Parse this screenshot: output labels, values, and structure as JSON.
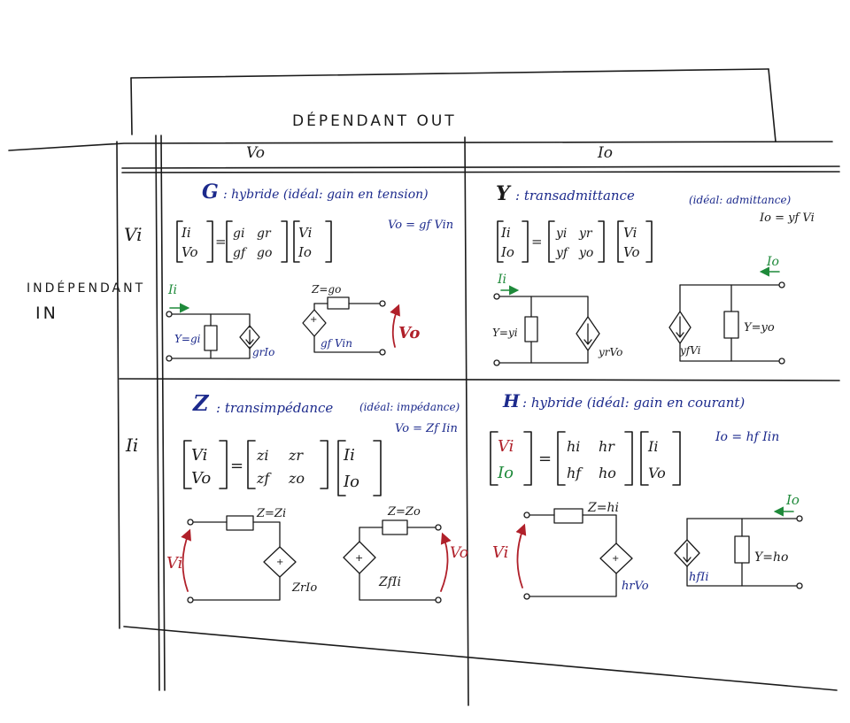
{
  "header": {
    "dependant_out": "DÉPENDANT OUT"
  },
  "side": {
    "independant": "INDÉPENDANT",
    "in": "IN"
  },
  "columns": {
    "vo": "Vo",
    "io": "Io"
  },
  "rows": {
    "vi": "Vi",
    "ii": "Ii"
  },
  "cells": {
    "g": {
      "letter": "G",
      "title": ": hybride (idéal: gain en tension)",
      "ideal": "Vo = gf Vin",
      "matrix_lhs": [
        "Ii",
        "Vo"
      ],
      "matrix_m": [
        [
          "gi",
          "gr"
        ],
        [
          "gf",
          "go"
        ]
      ],
      "matrix_rhs": [
        "Vi",
        "Io"
      ],
      "lbl_input": "Y=gi",
      "lbl_dep_source": "grIo",
      "lbl_output": "Z=go",
      "lbl_vcvs": "gf Vin",
      "arrow_in": "Ii",
      "arrow_out": "Vo"
    },
    "y": {
      "letter": "Y",
      "title": ": transadmittance",
      "ideal_head": "(idéal: admittance)",
      "ideal": "Io = yf Vi",
      "matrix_lhs": [
        "Ii",
        "Io"
      ],
      "matrix_m": [
        [
          "yi",
          "yr"
        ],
        [
          "yf",
          "yo"
        ]
      ],
      "matrix_rhs": [
        "Vi",
        "Vo"
      ],
      "lbl_input": "Y=yi",
      "lbl_dep_source": "yrVo",
      "lbl_out_source": "yfVi",
      "lbl_output": "Y=yo",
      "arrow_in": "Ii",
      "arrow_out": "Io"
    },
    "z": {
      "letter": "Z",
      "title": ": transimpédance",
      "ideal_head": "(idéal: impédance)",
      "ideal": "Vo = Zf Iin",
      "matrix_lhs": [
        "Vi",
        "Vo"
      ],
      "matrix_m": [
        [
          "zi",
          "zr"
        ],
        [
          "zf",
          "zo"
        ]
      ],
      "matrix_rhs": [
        "Ii",
        "Io"
      ],
      "lbl_input": "Z=Zi",
      "lbl_dep_source": "ZrIo",
      "lbl_output": "Z=Zo",
      "lbl_out_source": "ZfIi",
      "arrow_in": "Vi",
      "arrow_out": "Vo"
    },
    "h": {
      "letter": "H",
      "title": ": hybride (idéal: gain en courant)",
      "ideal": "Io = hf Iin",
      "matrix_lhs": [
        "Vi",
        "Io"
      ],
      "matrix_m": [
        [
          "hi",
          "hr"
        ],
        [
          "hf",
          "ho"
        ]
      ],
      "matrix_rhs": [
        "Ii",
        "Vo"
      ],
      "lbl_input": "Z=hi",
      "lbl_dep_source": "hrVo",
      "lbl_out_source": "hfIi",
      "lbl_output": "Y=ho",
      "arrow_in": "Vi",
      "arrow_out": "Io"
    }
  }
}
